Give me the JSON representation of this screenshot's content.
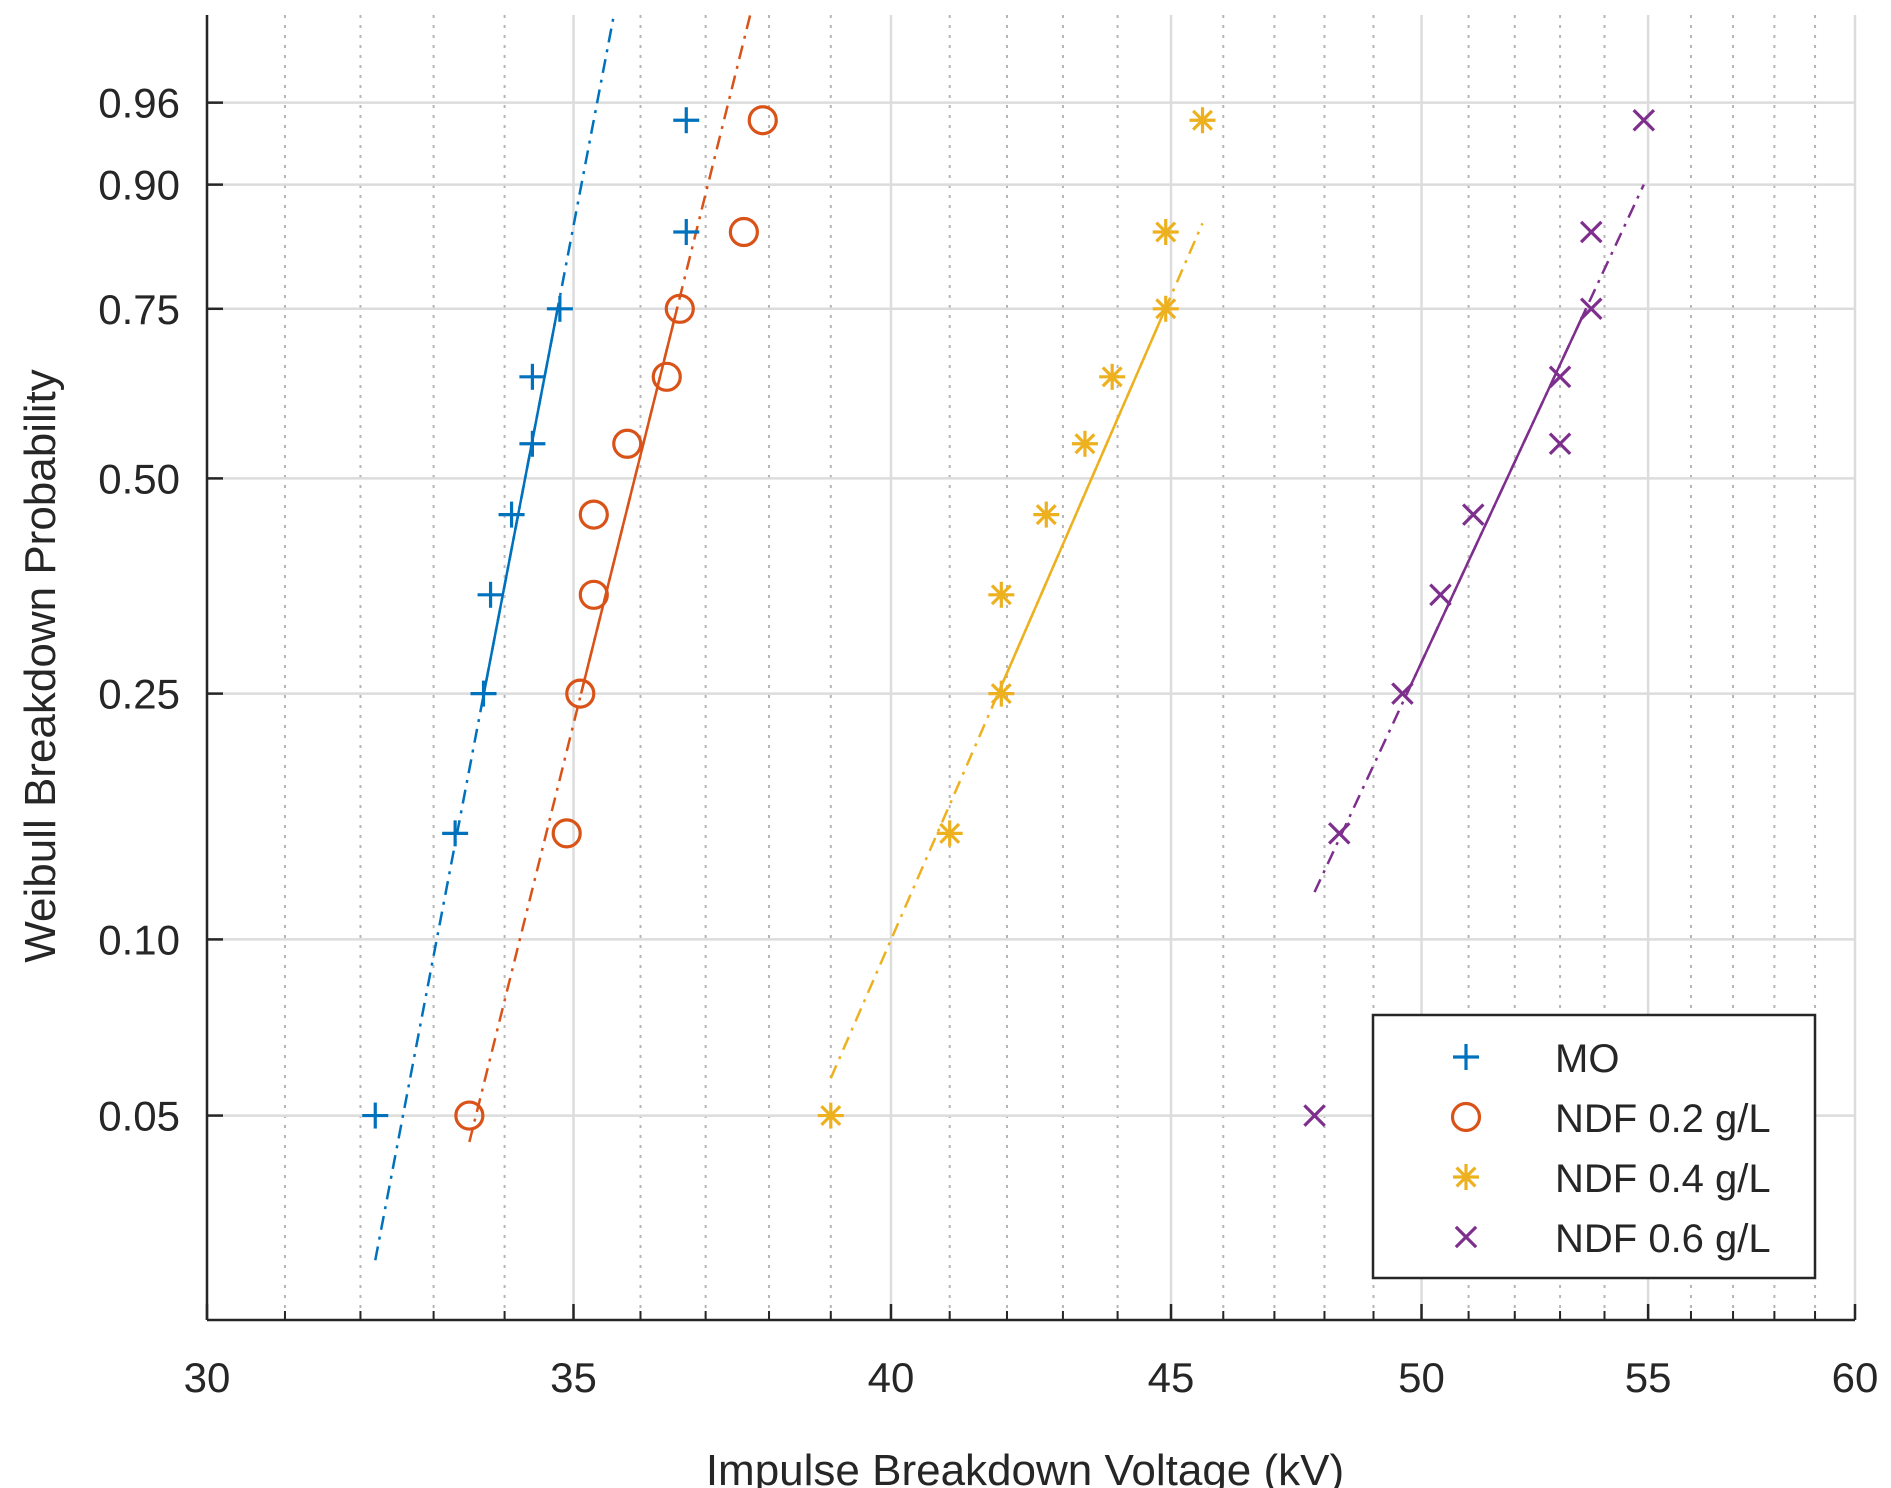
{
  "chart_data": {
    "type": "scatter",
    "title": "",
    "xlabel": "Impulse Breakdown Voltage (kV)",
    "ylabel": "Weibull Breakdown Probability",
    "xscale": "log",
    "yscale": "weibull",
    "xlim": [
      30,
      60
    ],
    "ylim": [
      0.022,
      0.99
    ],
    "xticks": [
      30,
      35,
      40,
      45,
      50,
      55,
      60
    ],
    "xtick_labels": [
      "30",
      "35",
      "40",
      "45",
      "50",
      "55",
      "60"
    ],
    "yticks": [
      0.05,
      0.1,
      0.25,
      0.5,
      0.75,
      0.9,
      0.96
    ],
    "ytick_labels": [
      "0.05",
      "0.10",
      "0.25",
      "0.50",
      "0.75",
      "0.90",
      "0.96"
    ],
    "grid": true,
    "legend_position": "bottom-right",
    "series": [
      {
        "name": "MO",
        "marker": "plus",
        "color": "#0072BD",
        "x": [
          32.2,
          33.3,
          33.7,
          33.8,
          34.1,
          34.4,
          34.4,
          34.8,
          36.7,
          36.7
        ],
        "y": [
          0.05,
          0.15,
          0.25,
          0.35,
          0.45,
          0.55,
          0.65,
          0.75,
          0.85,
          0.95
        ],
        "fit": {
          "x1": 32.2,
          "y1": 0.028,
          "x2": 35.6,
          "y2": 0.99,
          "solid_y": [
            0.25,
            0.75
          ]
        }
      },
      {
        "name": "NDF 0.2 g/L",
        "marker": "circle",
        "color": "#D95319",
        "x": [
          33.5,
          34.9,
          35.1,
          35.3,
          35.3,
          35.8,
          36.4,
          36.6,
          37.6,
          37.9
        ],
        "y": [
          0.05,
          0.15,
          0.25,
          0.35,
          0.45,
          0.55,
          0.65,
          0.75,
          0.85,
          0.95
        ],
        "fit": {
          "x1": 33.5,
          "y1": 0.045,
          "x2": 37.7,
          "y2": 0.99,
          "solid_y": [
            0.25,
            0.75
          ]
        }
      },
      {
        "name": "NDF 0.4 g/L",
        "marker": "asterisk",
        "color": "#EDB120",
        "x": [
          39.0,
          41.0,
          41.9,
          41.9,
          42.7,
          43.4,
          43.9,
          44.9,
          44.9,
          45.6
        ],
        "y": [
          0.05,
          0.15,
          0.25,
          0.35,
          0.45,
          0.55,
          0.65,
          0.75,
          0.85,
          0.95
        ],
        "fit": {
          "x1": 39.0,
          "y1": 0.058,
          "x2": 45.6,
          "y2": 0.86,
          "solid_y": [
            0.25,
            0.75
          ]
        }
      },
      {
        "name": "NDF 0.6 g/L",
        "marker": "x",
        "color": "#7E2F8E",
        "x": [
          47.8,
          48.3,
          49.6,
          50.4,
          51.1,
          53.0,
          53.0,
          53.7,
          53.7,
          54.9
        ],
        "y": [
          0.05,
          0.15,
          0.25,
          0.35,
          0.45,
          0.55,
          0.65,
          0.75,
          0.85,
          0.95
        ],
        "fit": {
          "x1": 47.8,
          "y1": 0.12,
          "x2": 54.9,
          "y2": 0.9,
          "solid_y": [
            0.25,
            0.75
          ]
        }
      }
    ]
  }
}
